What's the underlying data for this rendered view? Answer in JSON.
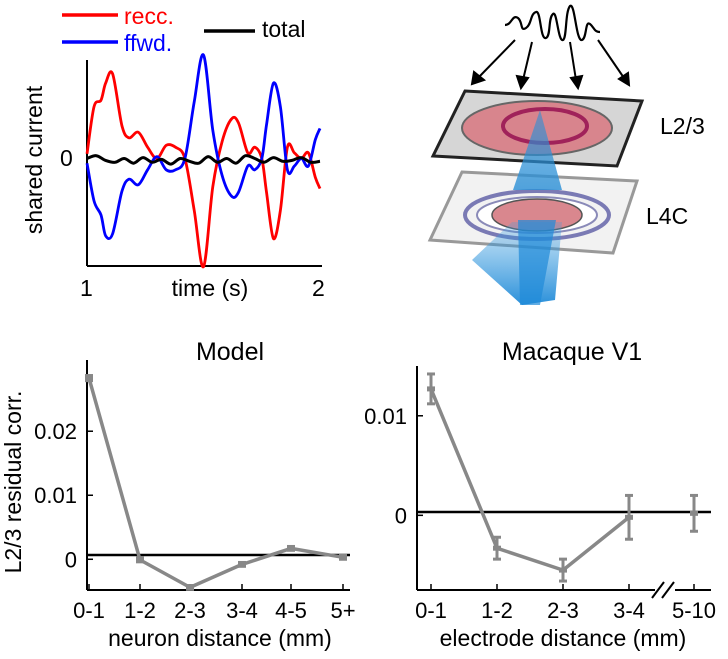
{
  "chart_data": [
    {
      "panel": "top-left",
      "type": "line",
      "title": "",
      "xlabel": "time (s)",
      "ylabel": "shared current",
      "x_ticks": [
        "1",
        "2"
      ],
      "y_ticks": [
        "0"
      ],
      "xlim": [
        1,
        2
      ],
      "ylim": [
        -1.1,
        1.1
      ],
      "legend": {
        "placement": "top",
        "items": [
          {
            "name": "recc.",
            "color": "#ff0000"
          },
          {
            "name": "ffwd.",
            "color": "#0000ff"
          },
          {
            "name": "total",
            "color": "#000000"
          }
        ]
      },
      "series": [
        {
          "name": "recc.",
          "color": "#ff0000",
          "x": [
            1.0,
            1.03,
            1.06,
            1.08,
            1.11,
            1.15,
            1.18,
            1.22,
            1.26,
            1.3,
            1.34,
            1.38,
            1.42,
            1.46,
            1.5,
            1.54,
            1.58,
            1.62,
            1.65,
            1.69,
            1.72,
            1.75,
            1.77,
            1.8,
            1.83,
            1.86,
            1.89,
            1.92,
            1.95,
            1.98,
            2.0
          ],
          "y": [
            0.05,
            0.55,
            0.62,
            0.8,
            0.9,
            0.35,
            0.22,
            0.28,
            0.12,
            0.0,
            0.14,
            0.12,
            0.0,
            -0.55,
            -1.15,
            -0.3,
            0.18,
            0.42,
            0.38,
            0.06,
            0.12,
            0.0,
            -0.35,
            -0.85,
            -0.55,
            0.12,
            0.06,
            0.0,
            0.06,
            -0.2,
            -0.32
          ]
        },
        {
          "name": "ffwd.",
          "color": "#0000ff",
          "x": [
            1.0,
            1.03,
            1.06,
            1.08,
            1.11,
            1.15,
            1.18,
            1.22,
            1.26,
            1.3,
            1.34,
            1.38,
            1.42,
            1.46,
            1.5,
            1.54,
            1.58,
            1.62,
            1.65,
            1.69,
            1.72,
            1.75,
            1.77,
            1.8,
            1.83,
            1.86,
            1.89,
            1.92,
            1.95,
            1.98,
            2.0
          ],
          "y": [
            -0.05,
            -0.45,
            -0.6,
            -0.82,
            -0.8,
            -0.35,
            -0.22,
            -0.28,
            -0.12,
            0.02,
            -0.12,
            -0.12,
            0.0,
            0.6,
            1.1,
            0.3,
            -0.18,
            -0.4,
            -0.36,
            -0.08,
            -0.12,
            0.0,
            0.35,
            0.8,
            0.55,
            -0.12,
            -0.08,
            0.0,
            -0.08,
            0.2,
            0.32
          ]
        },
        {
          "name": "total",
          "color": "#000000",
          "x": [
            1.0,
            1.04,
            1.08,
            1.12,
            1.16,
            1.2,
            1.24,
            1.28,
            1.32,
            1.36,
            1.4,
            1.44,
            1.48,
            1.52,
            1.56,
            1.6,
            1.64,
            1.68,
            1.72,
            1.76,
            1.8,
            1.84,
            1.88,
            1.92,
            1.96,
            2.0
          ],
          "y": [
            0.0,
            0.03,
            -0.02,
            -0.04,
            0.0,
            -0.05,
            0.01,
            -0.04,
            -0.01,
            -0.06,
            0.0,
            -0.03,
            -0.05,
            0.02,
            -0.04,
            0.0,
            -0.05,
            0.03,
            0.0,
            -0.04,
            0.01,
            -0.03,
            -0.02,
            0.01,
            -0.04,
            -0.03
          ]
        }
      ]
    },
    {
      "panel": "bottom-left",
      "type": "line",
      "title": "Model",
      "xlabel": "neuron distance (mm)",
      "ylabel": "L2/3 residual corr.",
      "categories": [
        "0-1",
        "1-2",
        "2-3",
        "3-4",
        "4-5",
        "5+"
      ],
      "y_ticks": [
        "0",
        "0.01",
        "0.02"
      ],
      "y_tick_values": [
        0,
        0.01,
        0.02
      ],
      "ylim": [
        -0.0048,
        0.0305
      ],
      "zero_line": true,
      "series": [
        {
          "name": "",
          "color": "#888888",
          "values": [
            0.0283,
            -0.0001,
            -0.0044,
            -0.0008,
            0.0017,
            0.0003
          ],
          "errors": [
            0.0004,
            0.0003,
            0.0003,
            0.0003,
            0.0003,
            0.0003
          ]
        }
      ]
    },
    {
      "panel": "bottom-right",
      "type": "line",
      "title": "Macaque V1",
      "xlabel": "electrode distance (mm)",
      "ylabel": "",
      "categories": [
        "0-1",
        "1-2",
        "2-3",
        "3-4",
        "5-10"
      ],
      "y_ticks": [
        "0",
        "0.01"
      ],
      "y_tick_values": [
        0,
        0.01
      ],
      "ylim": [
        -0.0075,
        0.015
      ],
      "zero_line": true,
      "axis_break": "//",
      "series": [
        {
          "name": "",
          "color": "#888888",
          "values": [
            0.0127,
            -0.0033,
            -0.0055,
            -0.0002,
            0.0002
          ],
          "errors": [
            0.0015,
            0.0011,
            0.0011,
            0.0022,
            0.0018
          ],
          "connected_through": "3-4"
        }
      ]
    }
  ],
  "diagram": {
    "layer_labels": [
      "L2/3",
      "L4C"
    ]
  }
}
